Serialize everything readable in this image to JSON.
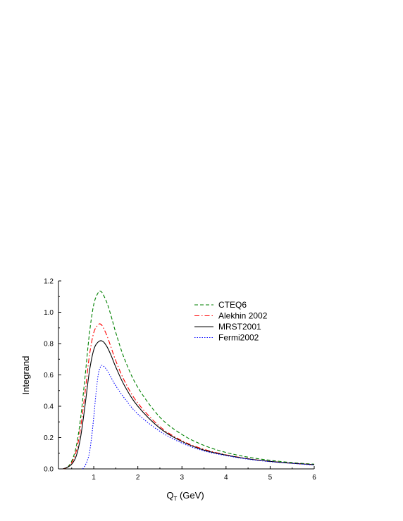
{
  "chart_data": {
    "type": "line",
    "title": "",
    "xlabel_main": "Q",
    "xlabel_sub": "T",
    "xlabel_unit": " (GeV)",
    "ylabel": "Integrand",
    "xlim": [
      0.2,
      6.0
    ],
    "ylim": [
      0.0,
      1.2
    ],
    "xticks": [
      1,
      2,
      3,
      4,
      5,
      6
    ],
    "xtick_labels": [
      "1",
      "2",
      "3",
      "4",
      "5",
      "6"
    ],
    "yticks": [
      0.0,
      0.2,
      0.4,
      0.6,
      0.8,
      1.0,
      1.2
    ],
    "ytick_labels": [
      "0.0",
      "0.2",
      "0.4",
      "0.6",
      "0.8",
      "1.0",
      "1.2"
    ],
    "grid": false,
    "legend_position": "top-right",
    "series": [
      {
        "name": "CTEQ6",
        "color": "#008000",
        "dash": "dashed",
        "x": [
          0.3,
          0.4,
          0.5,
          0.6,
          0.7,
          0.8,
          0.9,
          1.0,
          1.1,
          1.15,
          1.2,
          1.3,
          1.4,
          1.5,
          1.7,
          2.0,
          2.5,
          3.0,
          3.5,
          4.0,
          4.5,
          5.0,
          5.5,
          6.0
        ],
        "y": [
          0.0,
          0.01,
          0.05,
          0.14,
          0.32,
          0.58,
          0.86,
          1.05,
          1.125,
          1.135,
          1.12,
          1.06,
          0.97,
          0.87,
          0.7,
          0.52,
          0.33,
          0.22,
          0.15,
          0.105,
          0.075,
          0.055,
          0.04,
          0.03
        ]
      },
      {
        "name": "Alekhin 2002",
        "color": "#ff0000",
        "dash": "dashdot",
        "x": [
          0.3,
          0.4,
          0.5,
          0.6,
          0.7,
          0.8,
          0.9,
          1.0,
          1.1,
          1.15,
          1.2,
          1.3,
          1.4,
          1.5,
          1.7,
          2.0,
          2.5,
          3.0,
          3.5,
          4.0,
          4.5,
          5.0,
          5.5,
          6.0
        ],
        "y": [
          0.0,
          0.01,
          0.04,
          0.11,
          0.26,
          0.48,
          0.72,
          0.87,
          0.92,
          0.925,
          0.91,
          0.85,
          0.77,
          0.69,
          0.56,
          0.42,
          0.27,
          0.18,
          0.125,
          0.09,
          0.065,
          0.048,
          0.036,
          0.027
        ]
      },
      {
        "name": "MRST2001",
        "color": "#000000",
        "dash": "solid",
        "x": [
          0.3,
          0.4,
          0.5,
          0.6,
          0.7,
          0.8,
          0.9,
          1.0,
          1.1,
          1.2,
          1.3,
          1.4,
          1.5,
          1.7,
          2.0,
          2.5,
          3.0,
          3.5,
          4.0,
          4.5,
          5.0,
          5.5,
          6.0
        ],
        "y": [
          0.0,
          0.01,
          0.03,
          0.08,
          0.2,
          0.4,
          0.62,
          0.76,
          0.81,
          0.815,
          0.78,
          0.72,
          0.65,
          0.53,
          0.4,
          0.26,
          0.175,
          0.12,
          0.088,
          0.064,
          0.048,
          0.036,
          0.027
        ]
      },
      {
        "name": "Fermi2002",
        "color": "#0000ff",
        "dash": "dotted",
        "x": [
          0.75,
          0.8,
          0.85,
          0.9,
          0.95,
          1.0,
          1.05,
          1.1,
          1.15,
          1.2,
          1.3,
          1.4,
          1.5,
          1.7,
          2.0,
          2.5,
          3.0,
          3.5,
          4.0,
          4.5,
          5.0,
          5.5,
          6.0
        ],
        "y": [
          0.0,
          0.02,
          0.05,
          0.1,
          0.2,
          0.33,
          0.48,
          0.6,
          0.65,
          0.66,
          0.63,
          0.58,
          0.53,
          0.45,
          0.35,
          0.24,
          0.165,
          0.115,
          0.085,
          0.062,
          0.046,
          0.035,
          0.025
        ]
      }
    ]
  }
}
